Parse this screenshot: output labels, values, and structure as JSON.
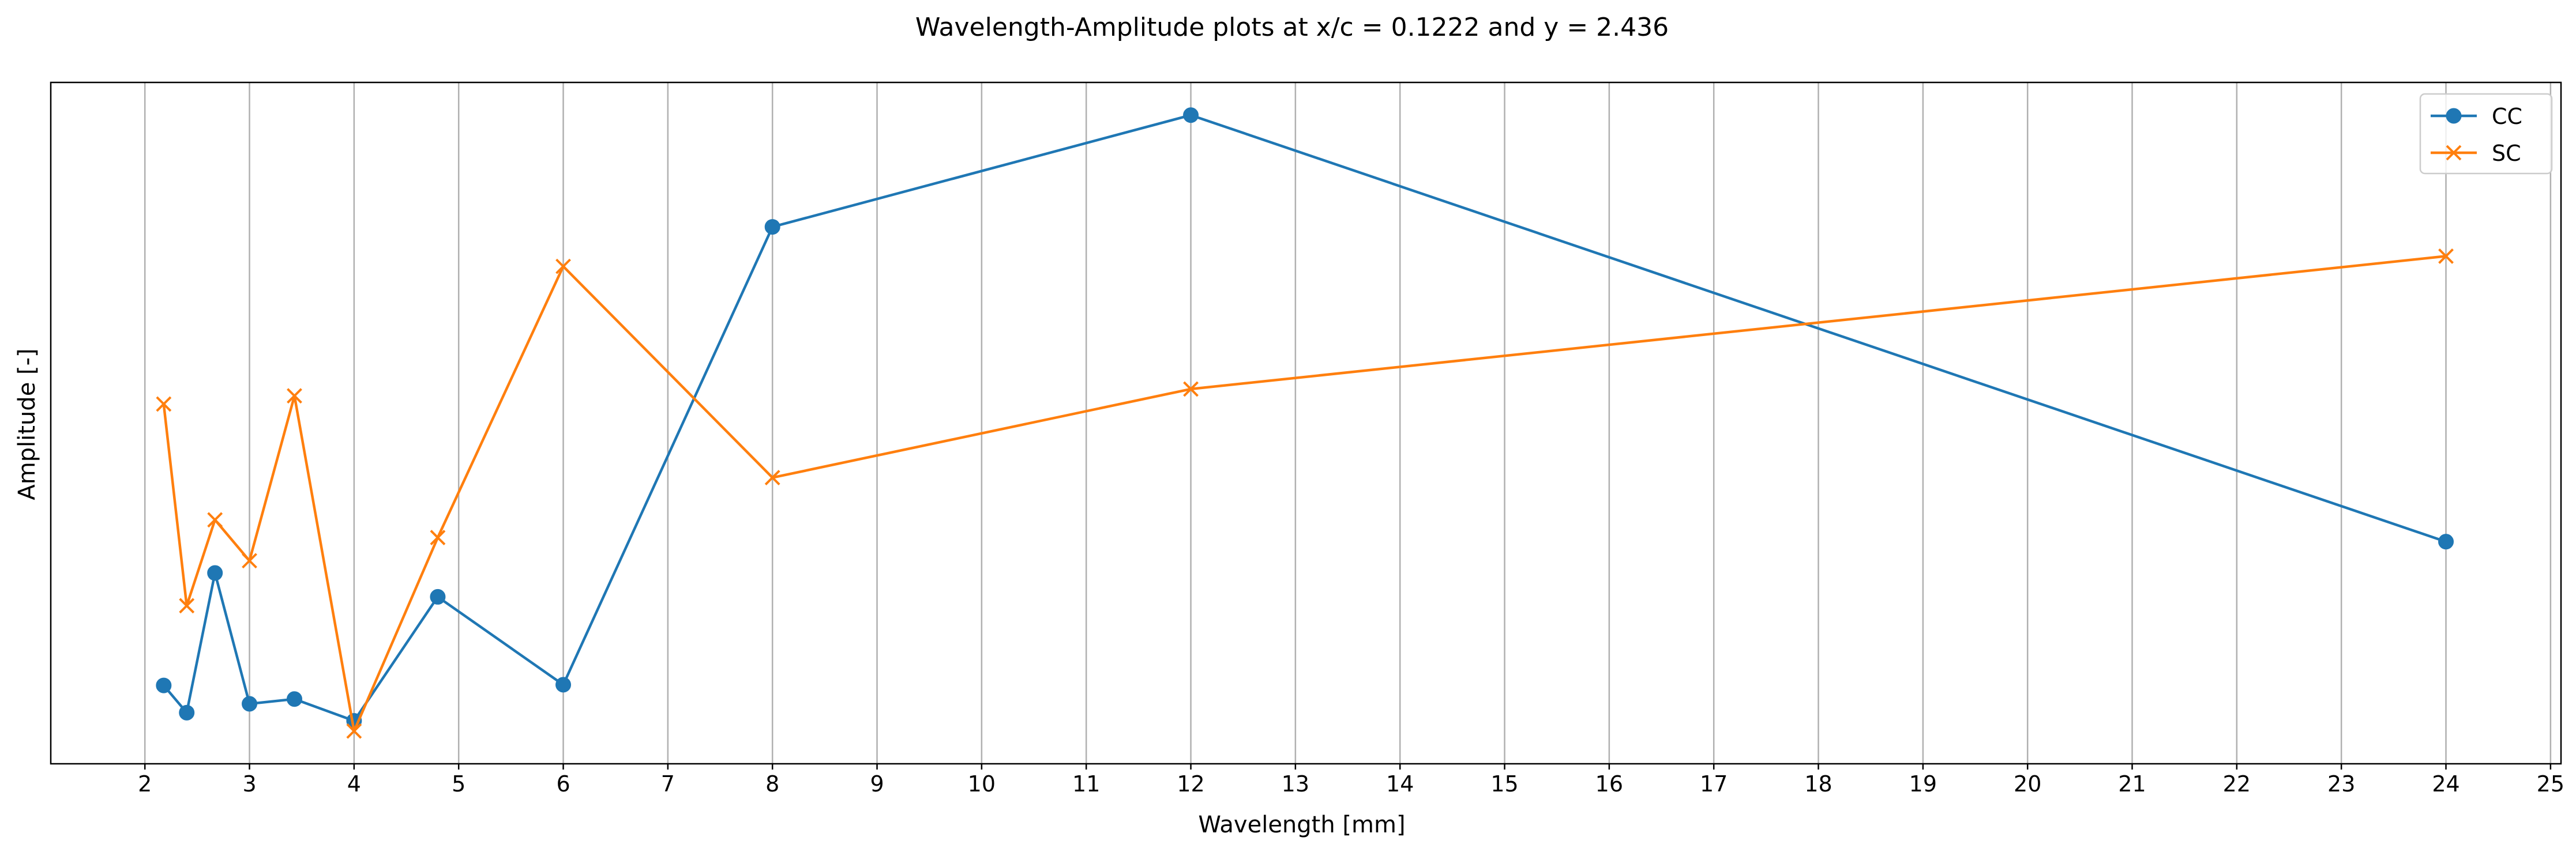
{
  "chart_data": {
    "type": "line",
    "title": "Wavelength-Amplitude plots at x/c = 0.1222 and y = 2.436",
    "xlabel": "Wavelength [mm]",
    "ylabel": "Amplitude [-]",
    "xlim": [
      1.1,
      25.1
    ],
    "ylim": [
      0,
      1
    ],
    "xticks": [
      2,
      3,
      4,
      5,
      6,
      7,
      8,
      9,
      10,
      11,
      12,
      13,
      14,
      15,
      16,
      17,
      18,
      19,
      20,
      21,
      22,
      23,
      24,
      25
    ],
    "yticks_shown": false,
    "grid": "vertical",
    "legend": "top-right",
    "series": [
      {
        "name": "CC",
        "color": "#1f77b4",
        "marker": "circle",
        "x": [
          2.18,
          2.4,
          2.67,
          3.0,
          3.43,
          4.0,
          4.8,
          6.0,
          8.0,
          12.0,
          24.0
        ],
        "y": [
          0.115,
          0.075,
          0.28,
          0.088,
          0.095,
          0.063,
          0.245,
          0.116,
          0.788,
          0.952,
          0.326
        ]
      },
      {
        "name": "SC",
        "color": "#ff7f0e",
        "marker": "x",
        "x": [
          2.18,
          2.4,
          2.67,
          3.0,
          3.43,
          4.0,
          4.8,
          6.0,
          8.0,
          12.0,
          24.0
        ],
        "y": [
          0.528,
          0.232,
          0.358,
          0.298,
          0.54,
          0.048,
          0.332,
          0.73,
          0.42,
          0.55,
          0.745
        ]
      }
    ]
  }
}
